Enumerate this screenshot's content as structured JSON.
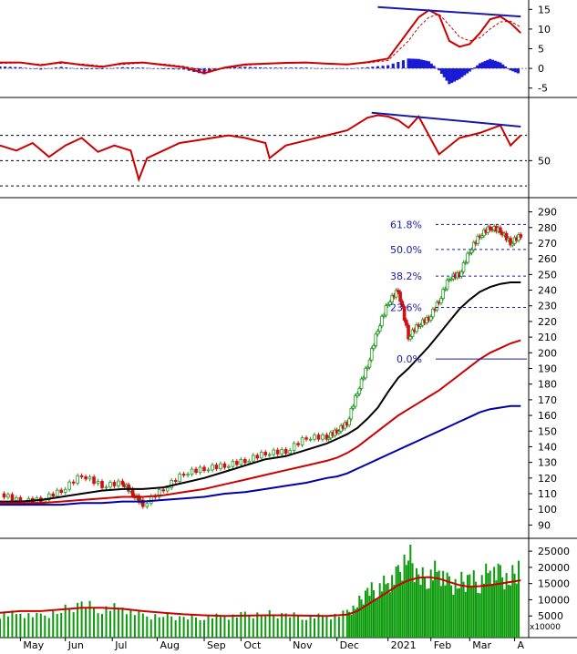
{
  "colors": {
    "price_up": "#1f9a1f",
    "price_down": "#d01010",
    "ma_short": "#000000",
    "ma_mid": "#cc0000",
    "ma_long": "#0000aa",
    "trendline": "#1a1aa6",
    "fib_text": "#1a1aa6",
    "macd_hist": "#1a1ad6",
    "macd_line": "#cc0000",
    "signal_line": "#cc0000",
    "rsi_line": "#cc0000",
    "volume_bar": "#0a9a0a",
    "volume_ma": "#cc0000",
    "grid_dash": "#000000",
    "axis": "#000000"
  },
  "chart_data": [
    {
      "type": "line",
      "panel": "macd",
      "y_ticks": [
        15,
        10,
        5,
        0,
        -5
      ],
      "ylim": [
        -6,
        16
      ],
      "x": [
        0,
        10,
        20,
        30,
        40,
        50,
        60,
        70,
        80,
        90,
        100,
        110,
        120,
        130,
        140,
        150,
        160,
        170,
        180,
        190,
        200,
        205,
        210,
        215,
        220,
        225,
        230,
        235,
        240,
        245,
        250,
        255
      ],
      "series": [
        {
          "values": [
            1.5,
            1.5,
            0.8,
            1.6,
            0.9,
            0.4,
            1.3,
            1.5,
            0.9,
            0.3,
            -1.2,
            0.2,
            1.0,
            1.2,
            1.4,
            1.5,
            1.2,
            1.0,
            1.6,
            2.5,
            9.5,
            13.0,
            14.8,
            13.5,
            7.0,
            5.5,
            6.2,
            9.0,
            12.5,
            13.2,
            11.5,
            9.0
          ]
        },
        {
          "values": [
            1.3,
            1.4,
            1.0,
            1.3,
            1.1,
            0.6,
            1.0,
            1.4,
            1.1,
            0.5,
            -0.5,
            0.0,
            0.8,
            1.1,
            1.3,
            1.4,
            1.3,
            1.1,
            1.4,
            2.0,
            7.0,
            10.5,
            13.0,
            13.8,
            11.0,
            8.0,
            7.0,
            7.8,
            10.0,
            11.8,
            12.0,
            10.5
          ]
        }
      ],
      "histogram": [
        0.5,
        0.3,
        -0.3,
        0.4,
        -0.2,
        -0.2,
        0.3,
        0.2,
        -0.2,
        -0.3,
        -1.5,
        0.3,
        0.4,
        0.2,
        0.2,
        0.2,
        -0.1,
        -0.1,
        0.3,
        0.8,
        2.5,
        2.4,
        1.8,
        -0.5,
        -4.0,
        -2.7,
        -0.8,
        1.3,
        2.4,
        1.5,
        -0.5,
        -1.5
      ],
      "trendline": [
        [
          185,
          15.6
        ],
        [
          255,
          13.2
        ]
      ]
    },
    {
      "type": "line",
      "panel": "rsi",
      "y_ticks": [
        50
      ],
      "ylim": [
        25,
        95
      ],
      "x": [
        0,
        8,
        16,
        24,
        32,
        40,
        48,
        56,
        64,
        68,
        72,
        80,
        88,
        96,
        104,
        112,
        120,
        130,
        132,
        140,
        150,
        160,
        170,
        180,
        185,
        190,
        195,
        200,
        205,
        215,
        225,
        235,
        245,
        250,
        255
      ],
      "series": [
        {
          "values": [
            62,
            58,
            64,
            53,
            62,
            68,
            57,
            62,
            58,
            35,
            52,
            58,
            64,
            66,
            68,
            70,
            68,
            64,
            52,
            62,
            66,
            70,
            74,
            84,
            86,
            85,
            82,
            76,
            85,
            55,
            68,
            72,
            78,
            62,
            70
          ]
        }
      ],
      "trendline": [
        [
          182,
          88
        ],
        [
          255,
          77
        ]
      ]
    },
    {
      "type": "line",
      "panel": "price",
      "y_ticks": [
        90,
        100,
        110,
        120,
        130,
        140,
        150,
        160,
        170,
        180,
        190,
        200,
        210,
        220,
        230,
        240,
        250,
        260,
        270,
        280,
        290
      ],
      "ylim": [
        85,
        295
      ],
      "x_ticks": [
        "May",
        "Jun",
        "Jul",
        "Aug",
        "Sep",
        "Oct",
        "Nov",
        "Dec",
        "2021",
        "Feb",
        "Mar",
        "A"
      ],
      "x": [
        0,
        10,
        20,
        30,
        40,
        50,
        60,
        65,
        70,
        80,
        90,
        100,
        110,
        120,
        130,
        140,
        150,
        160,
        165,
        170,
        175,
        180,
        185,
        190,
        195,
        200,
        205,
        210,
        215,
        220,
        225,
        230,
        235,
        240,
        245,
        250,
        255
      ],
      "close": [
        110,
        105,
        106,
        112,
        122,
        115,
        117,
        110,
        103,
        113,
        123,
        126,
        128,
        131,
        136,
        137,
        146,
        146,
        150,
        155,
        175,
        192,
        215,
        232,
        240,
        210,
        218,
        222,
        233,
        248,
        250,
        265,
        275,
        280,
        278,
        270,
        275
      ],
      "series": [
        {
          "name": "MA50",
          "values": [
            105,
            105,
            106,
            108,
            110,
            112,
            113,
            113,
            113,
            114,
            117,
            120,
            124,
            128,
            132,
            134,
            138,
            142,
            145,
            148,
            152,
            158,
            165,
            175,
            184,
            190,
            197,
            204,
            212,
            220,
            228,
            234,
            239,
            242,
            244,
            245,
            245
          ]
        },
        {
          "name": "MA100",
          "values": [
            104,
            104,
            104,
            105,
            106,
            107,
            108,
            108,
            108,
            109,
            111,
            113,
            116,
            119,
            122,
            125,
            128,
            131,
            133,
            136,
            140,
            145,
            150,
            155,
            160,
            164,
            168,
            172,
            176,
            181,
            186,
            191,
            196,
            200,
            203,
            206,
            208
          ]
        },
        {
          "name": "MA200",
          "values": [
            103,
            103,
            103,
            103,
            104,
            104,
            105,
            105,
            105,
            106,
            107,
            108,
            110,
            111,
            113,
            115,
            117,
            120,
            121,
            123,
            126,
            129,
            132,
            135,
            138,
            141,
            144,
            147,
            150,
            153,
            156,
            159,
            162,
            164,
            165,
            166,
            166
          ]
        }
      ],
      "fib_levels": [
        {
          "label": "61.8%",
          "value": 282
        },
        {
          "label": "50.0%",
          "value": 266
        },
        {
          "label": "38.2%",
          "value": 249
        },
        {
          "label": "23.6%",
          "value": 229
        },
        {
          "label": "0.0%",
          "value": 196
        }
      ]
    },
    {
      "type": "bar",
      "panel": "volume",
      "y_ticks": [
        25000,
        20000,
        15000,
        10000,
        5000
      ],
      "ylim": [
        0,
        27000
      ],
      "unit_label": "x10000",
      "x": [
        0,
        10,
        20,
        30,
        40,
        50,
        60,
        70,
        80,
        90,
        100,
        110,
        120,
        130,
        140,
        150,
        160,
        170,
        175,
        180,
        185,
        190,
        195,
        200,
        205,
        210,
        215,
        220,
        225,
        230,
        235,
        240,
        245,
        250,
        255
      ],
      "values": [
        5500,
        6000,
        5000,
        7000,
        9000,
        7500,
        8000,
        5000,
        5500,
        4500,
        5000,
        5000,
        5500,
        6000,
        5500,
        5000,
        5000,
        6000,
        9000,
        13000,
        14000,
        16000,
        18000,
        26000,
        17000,
        18000,
        20000,
        15000,
        16000,
        17000,
        16000,
        20000,
        18000,
        17000,
        22000
      ],
      "ma": [
        6000,
        6500,
        6500,
        7000,
        7500,
        7500,
        7200,
        6500,
        6000,
        5500,
        5200,
        5000,
        5100,
        5200,
        5200,
        5100,
        5000,
        5400,
        6500,
        8500,
        10500,
        12500,
        14500,
        16000,
        16800,
        17000,
        16500,
        15500,
        14500,
        14000,
        14200,
        14500,
        15000,
        15500,
        16000
      ]
    }
  ]
}
